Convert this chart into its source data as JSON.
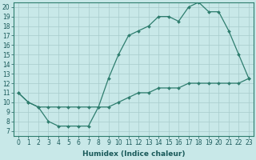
{
  "xlabel": "Humidex (Indice chaleur)",
  "xlim": [
    -0.5,
    23.5
  ],
  "ylim": [
    6.5,
    20.5
  ],
  "xticks": [
    0,
    1,
    2,
    3,
    4,
    5,
    6,
    7,
    8,
    9,
    10,
    11,
    12,
    13,
    14,
    15,
    16,
    17,
    18,
    19,
    20,
    21,
    22,
    23
  ],
  "yticks": [
    7,
    8,
    9,
    10,
    11,
    12,
    13,
    14,
    15,
    16,
    17,
    18,
    19,
    20
  ],
  "line1_x": [
    0,
    1,
    2,
    3,
    4,
    5,
    6,
    7,
    8,
    9,
    10,
    11,
    12,
    13,
    14,
    15,
    16,
    17,
    18,
    19,
    20,
    21,
    22,
    23
  ],
  "line1_y": [
    11,
    10,
    9.5,
    8,
    7.5,
    7.5,
    7.5,
    7.5,
    9.5,
    12.5,
    15,
    17,
    17.5,
    18,
    19,
    19,
    18.5,
    20,
    20.5,
    19.5,
    19.5,
    17.5,
    15,
    12.5
  ],
  "line2_x": [
    0,
    1,
    2,
    3,
    4,
    5,
    6,
    7,
    8,
    9,
    10,
    11,
    12,
    13,
    14,
    15,
    16,
    17,
    18,
    19,
    20,
    21,
    22,
    23
  ],
  "line2_y": [
    11,
    10,
    9.5,
    9.5,
    9.5,
    9.5,
    9.5,
    9.5,
    9.5,
    9.5,
    10,
    10.5,
    11,
    11,
    11.5,
    11.5,
    11.5,
    12,
    12,
    12,
    12,
    12,
    12,
    12.5
  ],
  "line_color": "#2e7d6e",
  "bg_color": "#c8e8e8",
  "grid_color": "#a8cccc",
  "marker": "D",
  "marker_size": 2.0,
  "line_width": 0.9,
  "tick_fontsize": 5.5,
  "xlabel_fontsize": 6.5
}
